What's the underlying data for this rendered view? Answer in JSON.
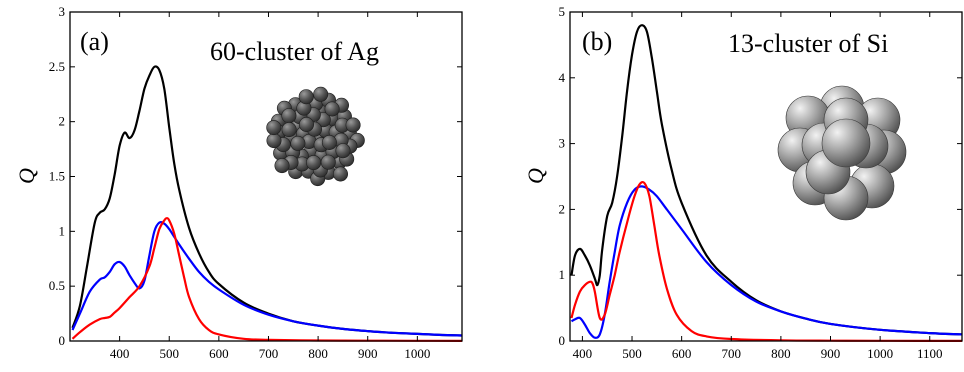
{
  "chart_data": [
    {
      "type": "line",
      "panel_label": "(a)",
      "title": "60-cluster of Ag",
      "xlabel": "",
      "ylabel": "Q",
      "xlim": [
        300,
        1090
      ],
      "ylim": [
        0,
        3
      ],
      "x_ticks": [
        400,
        500,
        600,
        700,
        800,
        900,
        1000
      ],
      "y_ticks": [
        0,
        0.5,
        1,
        1.5,
        2,
        2.5,
        3
      ],
      "y_tick_labels": [
        "0",
        "0.5",
        "1",
        "1.5",
        "2",
        "2.5",
        "3"
      ],
      "grid": false,
      "inset": "60-atom silver cluster",
      "series": [
        {
          "color": "#000000",
          "x": [
            305,
            320,
            335,
            350,
            360,
            370,
            380,
            390,
            400,
            410,
            420,
            430,
            440,
            450,
            460,
            470,
            480,
            490,
            500,
            510,
            520,
            540,
            560,
            580,
            600,
            650,
            700,
            750,
            800,
            850,
            900,
            950,
            1000,
            1050,
            1090
          ],
          "y": [
            0.12,
            0.32,
            0.7,
            1.08,
            1.17,
            1.2,
            1.3,
            1.52,
            1.78,
            1.9,
            1.85,
            1.92,
            2.1,
            2.3,
            2.42,
            2.5,
            2.47,
            2.3,
            1.95,
            1.62,
            1.38,
            1.03,
            0.8,
            0.63,
            0.52,
            0.35,
            0.25,
            0.18,
            0.14,
            0.11,
            0.09,
            0.075,
            0.065,
            0.055,
            0.05
          ]
        },
        {
          "color": "#0000ff",
          "x": [
            305,
            320,
            340,
            360,
            370,
            380,
            390,
            400,
            410,
            420,
            430,
            440,
            450,
            460,
            470,
            480,
            490,
            500,
            510,
            520,
            540,
            560,
            580,
            600,
            650,
            700,
            750,
            800,
            850,
            900,
            950,
            1000,
            1050,
            1090
          ],
          "y": [
            0.1,
            0.25,
            0.45,
            0.56,
            0.58,
            0.63,
            0.7,
            0.72,
            0.68,
            0.6,
            0.53,
            0.48,
            0.55,
            0.78,
            1.0,
            1.08,
            1.07,
            1.02,
            0.95,
            0.88,
            0.75,
            0.63,
            0.54,
            0.47,
            0.33,
            0.24,
            0.18,
            0.14,
            0.11,
            0.09,
            0.075,
            0.065,
            0.055,
            0.05
          ]
        },
        {
          "color": "#ff0000",
          "x": [
            305,
            320,
            340,
            360,
            370,
            380,
            390,
            400,
            420,
            440,
            460,
            470,
            480,
            490,
            495,
            500,
            510,
            520,
            530,
            540,
            560,
            580,
            600,
            650,
            700,
            800,
            900,
            1000,
            1090
          ],
          "y": [
            0.02,
            0.08,
            0.15,
            0.2,
            0.21,
            0.22,
            0.26,
            0.3,
            0.4,
            0.5,
            0.68,
            0.85,
            1.02,
            1.1,
            1.12,
            1.1,
            0.98,
            0.78,
            0.58,
            0.4,
            0.2,
            0.1,
            0.06,
            0.02,
            0.01,
            0.005,
            0.003,
            0.002,
            0.001
          ]
        }
      ]
    },
    {
      "type": "line",
      "panel_label": "(b)",
      "title": "13-cluster of Si",
      "xlabel": "",
      "ylabel": "Q",
      "xlim": [
        375,
        1165
      ],
      "ylim": [
        0,
        5
      ],
      "x_ticks": [
        400,
        500,
        600,
        700,
        800,
        900,
        1000,
        1100
      ],
      "y_ticks": [
        0,
        1,
        2,
        3,
        4,
        5
      ],
      "y_tick_labels": [
        "0",
        "1",
        "2",
        "3",
        "4",
        "5"
      ],
      "grid": false,
      "inset": "13-atom silicon cluster",
      "series": [
        {
          "color": "#000000",
          "x": [
            378,
            385,
            395,
            405,
            415,
            425,
            430,
            435,
            440,
            450,
            460,
            470,
            480,
            490,
            500,
            510,
            520,
            530,
            540,
            550,
            560,
            580,
            600,
            650,
            700,
            750,
            800,
            850,
            900,
            1000,
            1100,
            1165
          ],
          "y": [
            1.0,
            1.3,
            1.4,
            1.3,
            1.15,
            0.95,
            0.85,
            1.0,
            1.4,
            1.9,
            2.1,
            2.5,
            3.1,
            3.8,
            4.35,
            4.7,
            4.8,
            4.7,
            4.3,
            3.8,
            3.3,
            2.6,
            2.1,
            1.3,
            0.9,
            0.62,
            0.45,
            0.34,
            0.26,
            0.17,
            0.12,
            0.1
          ]
        },
        {
          "color": "#0000ff",
          "x": [
            378,
            385,
            395,
            405,
            415,
            425,
            435,
            445,
            455,
            465,
            475,
            490,
            505,
            520,
            535,
            550,
            570,
            600,
            650,
            700,
            750,
            800,
            850,
            900,
            1000,
            1100,
            1165
          ],
          "y": [
            0.3,
            0.33,
            0.35,
            0.25,
            0.12,
            0.05,
            0.1,
            0.4,
            0.9,
            1.35,
            1.75,
            2.1,
            2.3,
            2.35,
            2.3,
            2.2,
            2.0,
            1.7,
            1.2,
            0.85,
            0.6,
            0.45,
            0.34,
            0.26,
            0.17,
            0.12,
            0.1
          ]
        },
        {
          "color": "#ff0000",
          "x": [
            378,
            385,
            395,
            405,
            415,
            420,
            425,
            435,
            445,
            455,
            465,
            475,
            490,
            505,
            515,
            525,
            535,
            545,
            555,
            570,
            590,
            620,
            650,
            700,
            800,
            900,
            1000,
            1165
          ],
          "y": [
            0.35,
            0.55,
            0.75,
            0.85,
            0.9,
            0.88,
            0.75,
            0.35,
            0.4,
            0.7,
            1.0,
            1.35,
            1.8,
            2.2,
            2.38,
            2.4,
            2.2,
            1.75,
            1.3,
            0.8,
            0.4,
            0.15,
            0.07,
            0.03,
            0.01,
            0.005,
            0.003,
            0.002
          ]
        }
      ]
    }
  ]
}
